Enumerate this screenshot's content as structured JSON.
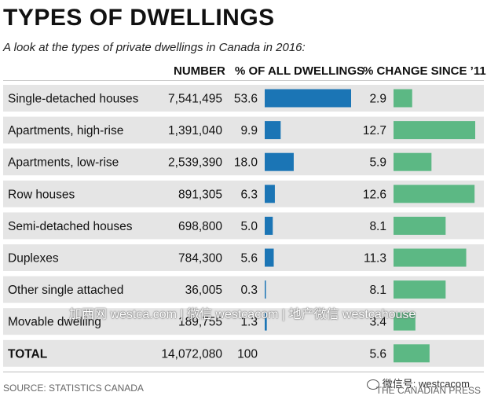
{
  "title": "TYPES OF DWELLINGS",
  "subtitle": "A look at the types of private dwellings in Canada in 2016:",
  "headers": {
    "number": "NUMBER",
    "pct_all": "% OF ALL DWELLINGS",
    "pct_change": "% CHANGE SINCE ’11"
  },
  "chart_data": {
    "type": "table",
    "title": "TYPES OF DWELLINGS",
    "subtitle": "A look at the types of private dwellings in Canada in 2016:",
    "columns": [
      "",
      "NUMBER",
      "% OF ALL DWELLINGS",
      "% CHANGE SINCE ’11"
    ],
    "rows": [
      {
        "label": "Single-detached houses",
        "number": "7,541,495",
        "pct_all": 53.6,
        "pct_all_text": "53.6",
        "pct_change": 2.9,
        "pct_change_text": "2.9"
      },
      {
        "label": "Apartments, high-rise",
        "number": "1,391,040",
        "pct_all": 9.9,
        "pct_all_text": "9.9",
        "pct_change": 12.7,
        "pct_change_text": "12.7"
      },
      {
        "label": "Apartments, low-rise",
        "number": "2,539,390",
        "pct_all": 18.0,
        "pct_all_text": "18.0",
        "pct_change": 5.9,
        "pct_change_text": "5.9"
      },
      {
        "label": "Row houses",
        "number": "891,305",
        "pct_all": 6.3,
        "pct_all_text": "6.3",
        "pct_change": 12.6,
        "pct_change_text": "12.6"
      },
      {
        "label": "Semi-detached houses",
        "number": "698,800",
        "pct_all": 5.0,
        "pct_all_text": "5.0",
        "pct_change": 8.1,
        "pct_change_text": "8.1"
      },
      {
        "label": "Duplexes",
        "number": "784,300",
        "pct_all": 5.6,
        "pct_all_text": "5.6",
        "pct_change": 11.3,
        "pct_change_text": "11.3"
      },
      {
        "label": "Other single attached",
        "number": "36,005",
        "pct_all": 0.3,
        "pct_all_text": "0.3",
        "pct_change": 8.1,
        "pct_change_text": "8.1"
      },
      {
        "label": "Movable dwelling",
        "number": "189,755",
        "pct_all": 1.3,
        "pct_all_text": "1.3",
        "pct_change": 3.4,
        "pct_change_text": "3.4"
      }
    ],
    "total": {
      "label": "TOTAL",
      "number": "14,072,080",
      "pct_all_text": "100",
      "pct_change": 5.6,
      "pct_change_text": "5.6"
    },
    "pct_all_max": 53.6,
    "pct_change_max": 12.7,
    "colors": {
      "pct_all_bar": "#1b75b5",
      "pct_change_bar": "#5cb884",
      "row_shade": "#e5e5e5"
    }
  },
  "watermark": "加西网 westca.com | 微信 westcacom | 地产微信 westcahouse",
  "source": "SOURCE: STATISTICS CANADA",
  "wechat_label": "微信号: westcacom",
  "credit": "THE CANADIAN PRESS"
}
